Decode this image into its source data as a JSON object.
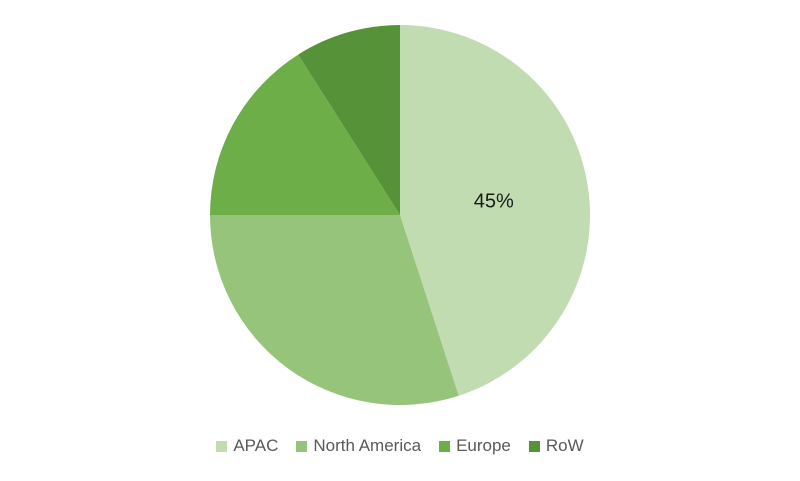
{
  "chart_data": {
    "type": "pie",
    "title": "",
    "categories": [
      "APAC",
      "North America",
      "Europe",
      "RoW"
    ],
    "values": [
      45,
      30,
      16,
      9
    ],
    "colors": [
      "#c2dcb1",
      "#96c47a",
      "#6eae48",
      "#569238"
    ],
    "data_labels": [
      "45%",
      "",
      "",
      ""
    ],
    "legend_position": "bottom"
  }
}
